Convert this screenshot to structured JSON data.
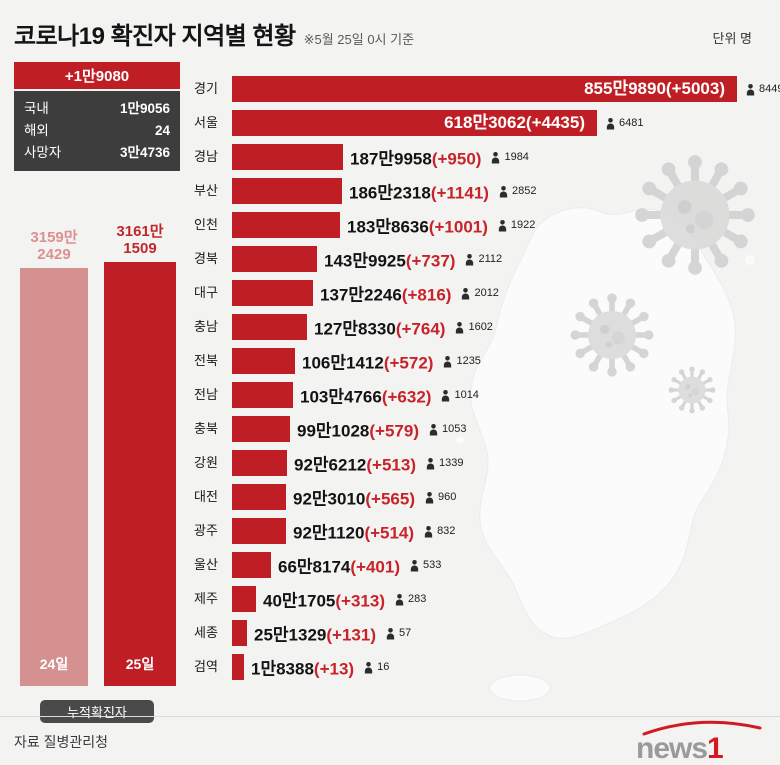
{
  "header": {
    "title": "코로나19 확진자 지역별 현황",
    "as_of": "※5월 25일 0시 기준",
    "unit_label": "단위 명"
  },
  "summary": {
    "new_total": "+1만9080",
    "breakdown": [
      {
        "label": "국내",
        "value": "1만9056"
      },
      {
        "label": "해외",
        "value": "24"
      },
      {
        "label": "사망자",
        "value": "3만4736"
      }
    ]
  },
  "cumulative": {
    "caption": "누적확진자",
    "bars": [
      {
        "day": "24일",
        "value_line1": "3159만",
        "value_line2": "2429",
        "total": 31592429
      },
      {
        "day": "25일",
        "value_line1": "3161만",
        "value_line2": "1509",
        "total": 31611509
      }
    ]
  },
  "chart_data": {
    "type": "bar",
    "orientation": "horizontal",
    "title": "코로나19 확진자 지역별 현황",
    "as_of": "5월 25일 0시 기준",
    "unit": "명",
    "xlim": [
      0,
      8559890
    ],
    "grid": false,
    "legend": "none",
    "regions": [
      {
        "name": "경기",
        "total": 8559890,
        "total_label": "855만9890",
        "delta": 5003,
        "delta_label": "(+5003)",
        "person_count": 8449,
        "label_inside": true
      },
      {
        "name": "서울",
        "total": 6183062,
        "total_label": "618만3062",
        "delta": 4435,
        "delta_label": "(+4435)",
        "person_count": 6481,
        "label_inside": true
      },
      {
        "name": "경남",
        "total": 1879958,
        "total_label": "187만9958",
        "delta": 950,
        "delta_label": "(+950)",
        "person_count": 1984,
        "label_inside": false
      },
      {
        "name": "부산",
        "total": 1862318,
        "total_label": "186만2318",
        "delta": 1141,
        "delta_label": "(+1141)",
        "person_count": 2852,
        "label_inside": false
      },
      {
        "name": "인천",
        "total": 1838636,
        "total_label": "183만8636",
        "delta": 1001,
        "delta_label": "(+1001)",
        "person_count": 1922,
        "label_inside": false
      },
      {
        "name": "경북",
        "total": 1439925,
        "total_label": "143만9925",
        "delta": 737,
        "delta_label": "(+737)",
        "person_count": 2112,
        "label_inside": false
      },
      {
        "name": "대구",
        "total": 1372246,
        "total_label": "137만2246",
        "delta": 816,
        "delta_label": "(+816)",
        "person_count": 2012,
        "label_inside": false
      },
      {
        "name": "충남",
        "total": 1278330,
        "total_label": "127만8330",
        "delta": 764,
        "delta_label": "(+764)",
        "person_count": 1602,
        "label_inside": false
      },
      {
        "name": "전북",
        "total": 1061412,
        "total_label": "106만1412",
        "delta": 572,
        "delta_label": "(+572)",
        "person_count": 1235,
        "label_inside": false
      },
      {
        "name": "전남",
        "total": 1034766,
        "total_label": "103만4766",
        "delta": 632,
        "delta_label": "(+632)",
        "person_count": 1014,
        "label_inside": false
      },
      {
        "name": "충북",
        "total": 991028,
        "total_label": "99만1028",
        "delta": 579,
        "delta_label": "(+579)",
        "person_count": 1053,
        "label_inside": false
      },
      {
        "name": "강원",
        "total": 926212,
        "total_label": "92만6212",
        "delta": 513,
        "delta_label": "(+513)",
        "person_count": 1339,
        "label_inside": false
      },
      {
        "name": "대전",
        "total": 923010,
        "total_label": "92만3010",
        "delta": 565,
        "delta_label": "(+565)",
        "person_count": 960,
        "label_inside": false
      },
      {
        "name": "광주",
        "total": 921120,
        "total_label": "92만1120",
        "delta": 514,
        "delta_label": "(+514)",
        "person_count": 832,
        "label_inside": false
      },
      {
        "name": "울산",
        "total": 668174,
        "total_label": "66만8174",
        "delta": 401,
        "delta_label": "(+401)",
        "person_count": 533,
        "label_inside": false
      },
      {
        "name": "제주",
        "total": 401705,
        "total_label": "40만1705",
        "delta": 313,
        "delta_label": "(+313)",
        "person_count": 283,
        "label_inside": false
      },
      {
        "name": "세종",
        "total": 251329,
        "total_label": "25만1329",
        "delta": 131,
        "delta_label": "(+131)",
        "person_count": 57,
        "label_inside": false
      },
      {
        "name": "검역",
        "total": 18388,
        "total_label": "1만8388",
        "delta": 13,
        "delta_label": "(+13)",
        "person_count": 16,
        "label_inside": false
      }
    ]
  },
  "footer": {
    "source": "자료 질병관리청",
    "logo_gray": "news",
    "logo_red": "1"
  },
  "colors": {
    "bar_red": "#bf1e24",
    "light_bar": "#d59090",
    "increase_red": "#c8232b",
    "dark_box": "#3d3d3d"
  }
}
